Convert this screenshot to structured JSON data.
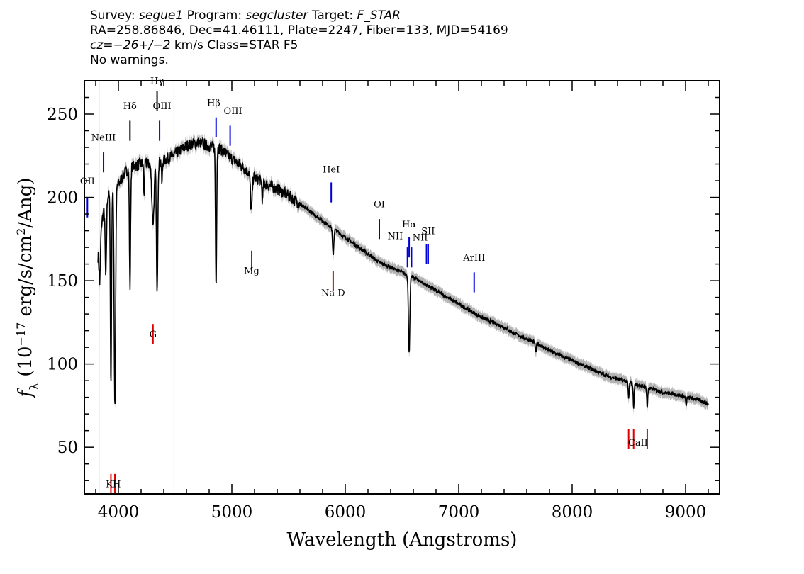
{
  "header": {
    "line1": {
      "survey_label": "Survey:",
      "survey": "segue1",
      "program_label": "Program:",
      "program": "segcluster",
      "target_label": "Target:",
      "target": "F_STAR"
    },
    "line2": "RA=258.86846, Dec=41.46111, Plate=2247, Fiber=133, MJD=54169",
    "line3": {
      "cz_prefix": "cz=",
      "cz_value": "−26+/−2",
      "cz_suffix": " km/s Class=STAR F5"
    },
    "line4": "No warnings."
  },
  "chart_data": {
    "type": "line",
    "xlabel": "Wavelength (Angstroms)",
    "ylabel": "f_λ (10^-17 erg/s/cm^2/Ang)",
    "ylabel_parts": {
      "symbol": "f",
      "sub": "λ",
      "pre": " (10",
      "exp1": "−17",
      "mid": " erg/s/cm",
      "exp2": "2",
      "post": "/Ang)"
    },
    "xlim": [
      3700,
      9300
    ],
    "ylim": [
      22,
      270
    ],
    "x_ticks": [
      4000,
      5000,
      6000,
      7000,
      8000,
      9000
    ],
    "y_ticks": [
      50,
      100,
      150,
      200,
      250
    ],
    "x_tick_labels": [
      "4000",
      "5000",
      "6000",
      "7000",
      "8000",
      "9000"
    ],
    "y_tick_labels": [
      "50",
      "100",
      "150",
      "200",
      "250"
    ],
    "vertical_guides": [
      3830,
      4490
    ],
    "colors": {
      "spectrum": "#000000",
      "error_band": "#b4b4b4",
      "emission": "#0000dd",
      "absorption": "#dd0000",
      "guide": "#c8c8c8"
    },
    "continuum": [
      [
        3820,
        165
      ],
      [
        3860,
        188
      ],
      [
        3900,
        200
      ],
      [
        3950,
        204
      ],
      [
        4000,
        208
      ],
      [
        4050,
        214
      ],
      [
        4100,
        218
      ],
      [
        4200,
        220
      ],
      [
        4300,
        220
      ],
      [
        4400,
        222
      ],
      [
        4500,
        226
      ],
      [
        4600,
        231
      ],
      [
        4700,
        233
      ],
      [
        4800,
        231
      ],
      [
        4900,
        229
      ],
      [
        5000,
        223
      ],
      [
        5100,
        218
      ],
      [
        5200,
        212
      ],
      [
        5300,
        208
      ],
      [
        5400,
        205
      ],
      [
        5500,
        201
      ],
      [
        5600,
        196
      ],
      [
        5700,
        191
      ],
      [
        5800,
        186
      ],
      [
        5900,
        181
      ],
      [
        6000,
        176
      ],
      [
        6100,
        171
      ],
      [
        6200,
        166
      ],
      [
        6300,
        161
      ],
      [
        6400,
        158
      ],
      [
        6500,
        155
      ],
      [
        6600,
        152
      ],
      [
        6700,
        148
      ],
      [
        6800,
        144
      ],
      [
        6900,
        140
      ],
      [
        7000,
        136
      ],
      [
        7100,
        132
      ],
      [
        7200,
        128
      ],
      [
        7300,
        125
      ],
      [
        7400,
        122
      ],
      [
        7500,
        118
      ],
      [
        7600,
        115
      ],
      [
        7700,
        112
      ],
      [
        7800,
        108
      ],
      [
        7900,
        105
      ],
      [
        8000,
        102
      ],
      [
        8100,
        99
      ],
      [
        8200,
        96
      ],
      [
        8300,
        93
      ],
      [
        8400,
        91
      ],
      [
        8500,
        89
      ],
      [
        8600,
        87
      ],
      [
        8700,
        85
      ],
      [
        8800,
        83
      ],
      [
        8900,
        82
      ],
      [
        9000,
        80
      ],
      [
        9100,
        79
      ],
      [
        9200,
        76
      ]
    ],
    "absorption_features": [
      {
        "x": 3835,
        "depth": 25,
        "width": 8
      },
      {
        "x": 3889,
        "depth": 45,
        "width": 8
      },
      {
        "x": 3934,
        "depth": 115,
        "width": 7
      },
      {
        "x": 3969,
        "depth": 130,
        "width": 9
      },
      {
        "x": 4102,
        "depth": 72,
        "width": 7
      },
      {
        "x": 4226,
        "depth": 20,
        "width": 5
      },
      {
        "x": 4305,
        "depth": 35,
        "width": 14
      },
      {
        "x": 4341,
        "depth": 80,
        "width": 8
      },
      {
        "x": 4384,
        "depth": 14,
        "width": 5
      },
      {
        "x": 4861,
        "depth": 82,
        "width": 7
      },
      {
        "x": 5172,
        "depth": 22,
        "width": 10
      },
      {
        "x": 5270,
        "depth": 12,
        "width": 6
      },
      {
        "x": 5893,
        "depth": 16,
        "width": 8
      },
      {
        "x": 6563,
        "depth": 46,
        "width": 9
      },
      {
        "x": 7680,
        "depth": 6,
        "width": 6
      },
      {
        "x": 8498,
        "depth": 10,
        "width": 6
      },
      {
        "x": 8542,
        "depth": 14,
        "width": 6
      },
      {
        "x": 8662,
        "depth": 12,
        "width": 6
      },
      {
        "x": 9005,
        "depth": 6,
        "width": 5
      }
    ],
    "emission_lines": [
      {
        "label": "OII",
        "x": 3727,
        "y": 200
      },
      {
        "label": "NeIII",
        "x": 3869,
        "y": 227
      },
      {
        "label": "Hδ",
        "x": 4102,
        "y": 246
      },
      {
        "label": "Hγ",
        "x": 4341,
        "y": 264
      },
      {
        "label": "OIII",
        "x": 4363,
        "y": 246
      },
      {
        "label": "Hβ",
        "x": 4861,
        "y": 248
      },
      {
        "label": "OIII",
        "x": 4985,
        "y": 243
      },
      {
        "label": "HeI",
        "x": 5876,
        "y": 209
      },
      {
        "label": "OI",
        "x": 6300,
        "y": 187
      },
      {
        "label": "NII",
        "x": 6548,
        "y": 170
      },
      {
        "label": "Hα",
        "x": 6563,
        "y": 176
      },
      {
        "label": "NII",
        "x": 6584,
        "y": 170
      },
      {
        "label": "SII",
        "x": 6716,
        "y": 172
      },
      {
        "label": "SII",
        "x": 6731,
        "y": 172
      },
      {
        "label": "ArIII",
        "x": 7136,
        "y": 155
      }
    ],
    "absorption_lines": [
      {
        "label": "K",
        "x": 3934,
        "y": 34
      },
      {
        "label": "H",
        "x": 3969,
        "y": 34
      },
      {
        "label": "G",
        "x": 4305,
        "y": 124
      },
      {
        "label": "Mg",
        "x": 5175,
        "y": 168
      },
      {
        "label": "Na",
        "x": 5893,
        "y": 156
      },
      {
        "label": "CaII",
        "x": 8498,
        "y": 61
      },
      {
        "label": "CaII",
        "x": 8542,
        "y": 61
      },
      {
        "label": "CaII",
        "x": 8662,
        "y": 61
      }
    ],
    "line_texts": [
      {
        "text": "OII",
        "x": 3727,
        "y": 208,
        "kind": "emission"
      },
      {
        "text": "NeIII",
        "x": 3869,
        "y": 234,
        "kind": "emission"
      },
      {
        "text": "Hδ",
        "x": 4102,
        "y": 253,
        "kind": "emission"
      },
      {
        "text": "Hγ",
        "x": 4341,
        "y": 268,
        "kind": "emission"
      },
      {
        "text": "OIII",
        "x": 4385,
        "y": 253,
        "kind": "emission"
      },
      {
        "text": "Hβ",
        "x": 4840,
        "y": 255,
        "kind": "emission"
      },
      {
        "text": "OIII",
        "x": 5010,
        "y": 250,
        "kind": "emission"
      },
      {
        "text": "HeI",
        "x": 5876,
        "y": 215,
        "kind": "emission"
      },
      {
        "text": "OI",
        "x": 6300,
        "y": 194,
        "kind": "emission"
      },
      {
        "text": "NII",
        "x": 6440,
        "y": 175,
        "kind": "emission"
      },
      {
        "text": "Hα",
        "x": 6563,
        "y": 182,
        "kind": "emission"
      },
      {
        "text": "NII",
        "x": 6660,
        "y": 174,
        "kind": "emission"
      },
      {
        "text": "SII",
        "x": 6730,
        "y": 178,
        "kind": "emission"
      },
      {
        "text": "ArIII",
        "x": 7136,
        "y": 162,
        "kind": "emission"
      },
      {
        "text": "KH",
        "x": 3955,
        "y": 26,
        "kind": "absorption"
      },
      {
        "text": "G",
        "x": 4305,
        "y": 116,
        "kind": "absorption"
      },
      {
        "text": "Mg",
        "x": 5175,
        "y": 154,
        "kind": "absorption"
      },
      {
        "text": "Na D",
        "x": 5893,
        "y": 141,
        "kind": "absorption"
      },
      {
        "text": "CaII",
        "x": 8580,
        "y": 51,
        "kind": "absorption"
      }
    ]
  }
}
